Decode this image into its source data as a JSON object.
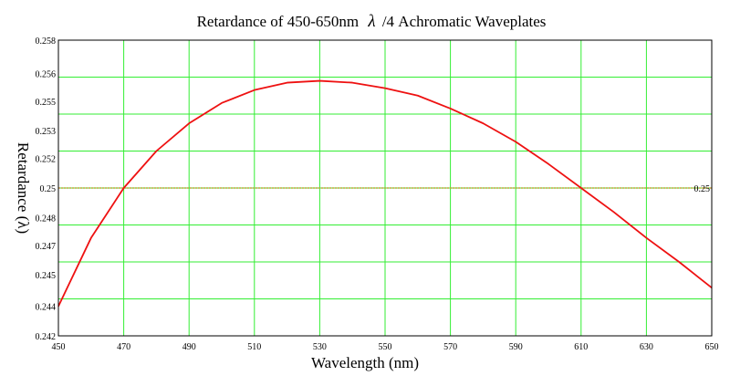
{
  "chart_data": {
    "type": "line",
    "title_prefix": "Retardance of 450-650nm",
    "title_symbol": "λ",
    "title_suffix": "/4 Achromatic Waveplates",
    "xlabel": "Wavelength (nm)",
    "ylabel": "Retardance (λ)",
    "xlim": [
      450,
      650
    ],
    "ylim": [
      0.242,
      0.258
    ],
    "x_ticks": [
      450,
      470,
      490,
      510,
      530,
      550,
      570,
      590,
      610,
      630,
      650
    ],
    "x_tick_labels": [
      "450",
      "470",
      "490",
      "510",
      "530",
      "550",
      "570",
      "590",
      "610",
      "630",
      "650"
    ],
    "y_ticks": [
      0.242,
      0.244,
      0.246,
      0.248,
      0.25,
      0.252,
      0.254,
      0.256,
      0.258
    ],
    "y_tick_labels": [
      "0.242",
      "0.244",
      "0.245",
      "0.247",
      "0.248",
      "0.25",
      "0.252",
      "0.253",
      "0.255",
      "0.256",
      "0.258"
    ],
    "y_tick_values": [
      0.242,
      0.2436,
      0.2453,
      0.2469,
      0.2484,
      0.25,
      0.2516,
      0.2531,
      0.2547,
      0.2562,
      0.258
    ],
    "grid": true,
    "grid_color": "#33ee33",
    "series": [
      {
        "color": "#ee1111",
        "x": [
          450,
          460,
          470,
          480,
          490,
          500,
          510,
          520,
          530,
          540,
          550,
          560,
          570,
          580,
          590,
          600,
          610,
          620,
          630,
          640,
          650
        ],
        "values": [
          0.2436,
          0.2473,
          0.25,
          0.252,
          0.2535,
          0.2546,
          0.2553,
          0.2557,
          0.2558,
          0.2557,
          0.2554,
          0.255,
          0.2543,
          0.2535,
          0.2525,
          0.2513,
          0.25,
          0.2487,
          0.2473,
          0.246,
          0.2446
        ]
      }
    ],
    "reference_line": {
      "value": 0.25,
      "label": "0.25",
      "color": "#c8a040"
    }
  }
}
